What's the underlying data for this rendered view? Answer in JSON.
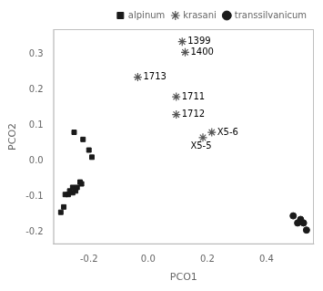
{
  "chart_data": {
    "type": "scatter",
    "xlabel": "PCO1",
    "ylabel": "PCO2",
    "xlim": [
      -0.32,
      0.56
    ],
    "ylim": [
      -0.235,
      0.37
    ],
    "xticks": [
      -0.2,
      {
        "value": 0.0,
        "label": "0.0"
      },
      0.2,
      0.4
    ],
    "yticks": [
      -0.2,
      -0.1,
      {
        "value": 0.0,
        "label": "0.0"
      },
      0.1,
      0.2,
      0.3
    ],
    "grid": false,
    "legend": "upper right",
    "series": [
      {
        "name": "alpinum",
        "color": "#1a1a1a",
        "marker": "square",
        "values": [
          [
            -0.25,
            0.08
          ],
          [
            -0.22,
            0.06
          ],
          [
            -0.2,
            0.03
          ],
          [
            -0.19,
            0.01
          ],
          [
            -0.23,
            -0.06
          ],
          [
            -0.225,
            -0.065
          ],
          [
            -0.24,
            -0.075
          ],
          [
            -0.245,
            -0.085
          ],
          [
            -0.255,
            -0.09
          ],
          [
            -0.27,
            -0.095
          ],
          [
            -0.28,
            -0.095
          ],
          [
            -0.265,
            -0.085
          ],
          [
            -0.255,
            -0.075
          ],
          [
            -0.285,
            -0.13
          ],
          [
            -0.295,
            -0.145
          ]
        ]
      },
      {
        "name": "krasani",
        "color": "#555555",
        "marker": "asterisk",
        "values": [
          [
            0.115,
            0.335
          ],
          [
            0.125,
            0.305
          ],
          [
            -0.035,
            0.235
          ],
          [
            0.095,
            0.18
          ],
          [
            0.095,
            0.13
          ],
          [
            0.215,
            0.08
          ],
          [
            0.185,
            0.065
          ]
        ]
      },
      {
        "name": "transsilvanicum",
        "color": "#1a1a1a",
        "marker": "circle",
        "values": [
          [
            0.49,
            -0.155
          ],
          [
            0.515,
            -0.165
          ],
          [
            0.525,
            -0.175
          ],
          [
            0.535,
            -0.195
          ],
          [
            0.505,
            -0.175
          ]
        ]
      }
    ],
    "annotations": [
      {
        "text": "1399",
        "x": 0.115,
        "y": 0.335
      },
      {
        "text": "1400",
        "x": 0.125,
        "y": 0.305
      },
      {
        "text": "1713",
        "x": -0.035,
        "y": 0.235
      },
      {
        "text": "1711",
        "x": 0.095,
        "y": 0.18
      },
      {
        "text": "1712",
        "x": 0.095,
        "y": 0.13
      },
      {
        "text": "X5-6",
        "x": 0.215,
        "y": 0.08
      },
      {
        "text": "X5-5",
        "x": 0.185,
        "y": 0.065
      }
    ]
  }
}
